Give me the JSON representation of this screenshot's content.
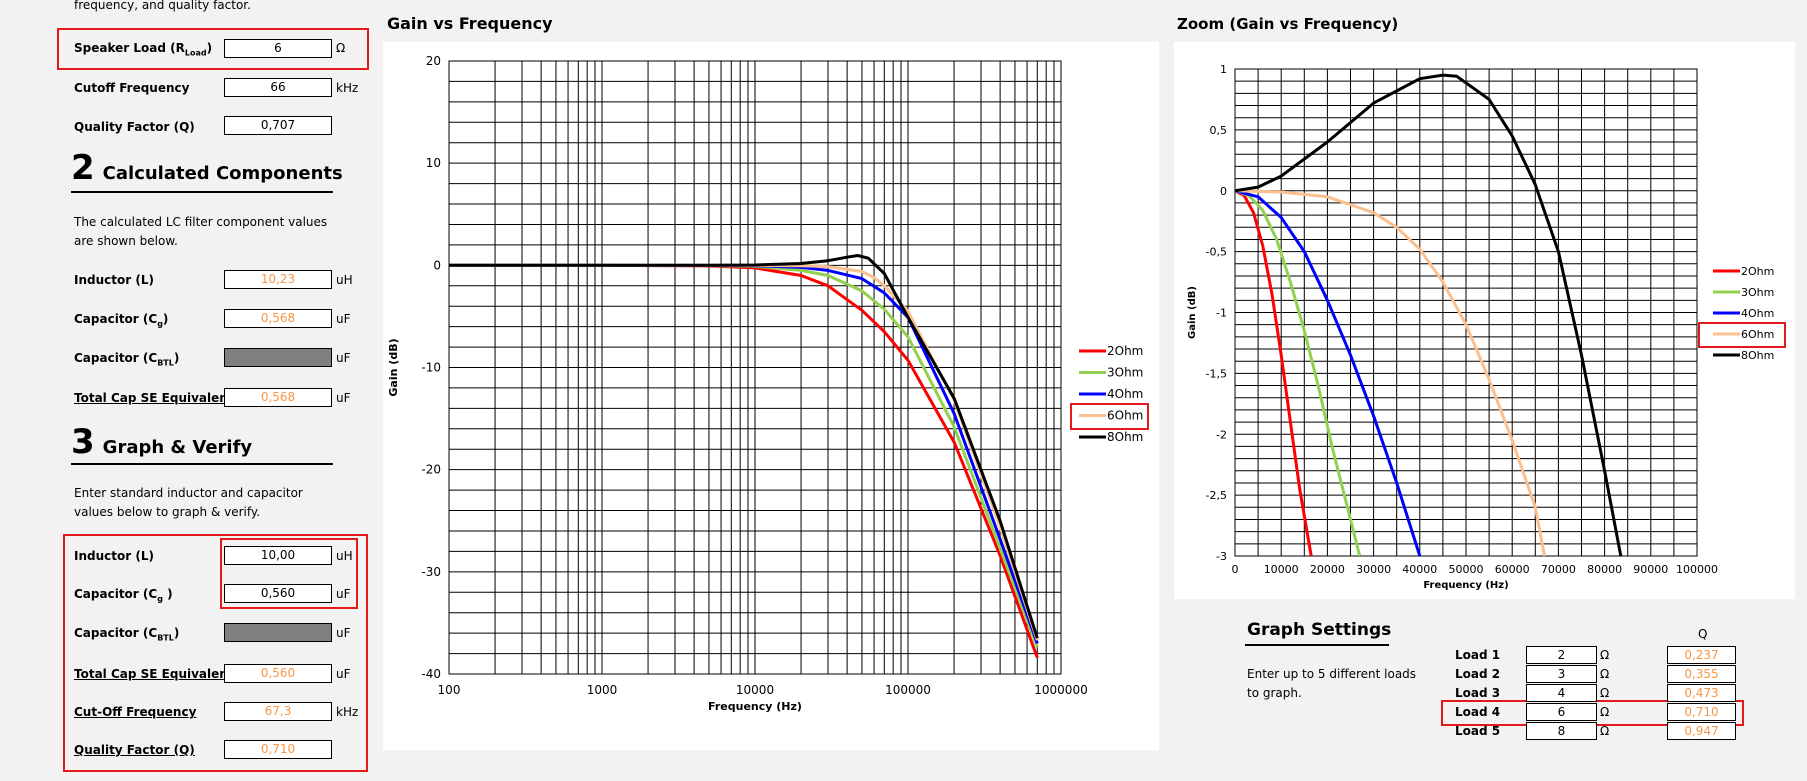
{
  "intro_text": "frequency, and quality factor.",
  "inputs": {
    "speaker_load": {
      "label": "Speaker Load (R",
      "sub": "Load",
      "value": "6",
      "unit": "Ω"
    },
    "cutoff": {
      "label": "Cutoff Frequency",
      "value": "66",
      "unit": "kHz"
    },
    "q": {
      "label": "Quality Factor (Q)",
      "value": "0,707"
    }
  },
  "section2": {
    "number": "2",
    "title": "Calculated Components",
    "desc": "The calculated LC filter component values are shown below.",
    "inductor": {
      "label": "Inductor (L)",
      "value": "10,23",
      "unit": "uH"
    },
    "cap_g": {
      "label": "Capacitor (C",
      "sub": "g",
      "value": "0,568",
      "unit": "uF"
    },
    "cap_btl": {
      "label": "Capacitor (C",
      "sub": "BTL",
      "unit": "uF"
    },
    "total_cap": {
      "label": "Total Cap SE Equivalent",
      "value": "0,568",
      "unit": "uF"
    }
  },
  "section3": {
    "number": "3",
    "title": "Graph & Verify",
    "desc": "Enter standard inductor and capacitor values below to graph & verify.",
    "inductor": {
      "label": "Inductor (L)",
      "value": "10,00",
      "unit": "uH"
    },
    "cap_g": {
      "label": "Capacitor (C",
      "sub": "g",
      "value": "0,560",
      "unit": "uF"
    },
    "cap_btl": {
      "label": "Capacitor (C",
      "sub": "BTL",
      "unit": "uF"
    },
    "total_cap": {
      "label": "Total Cap SE Equivalent",
      "value": "0,560",
      "unit": "uF"
    },
    "cutoff": {
      "label": "Cut-Off Frequency",
      "value": "67,3",
      "unit": "kHz"
    },
    "q": {
      "label": "Quality Factor (Q)",
      "value": "0,710"
    }
  },
  "graph_settings": {
    "title": "Graph Settings",
    "desc": "Enter up to 5 different loads to graph.",
    "q_header": "Q",
    "loads": [
      {
        "label": "Load 1",
        "value": "2",
        "unit": "Ω",
        "q": "0,237"
      },
      {
        "label": "Load 2",
        "value": "3",
        "unit": "Ω",
        "q": "0,355"
      },
      {
        "label": "Load 3",
        "value": "4",
        "unit": "Ω",
        "q": "0,473"
      },
      {
        "label": "Load 4",
        "value": "6",
        "unit": "Ω",
        "q": "0,710"
      },
      {
        "label": "Load 5",
        "value": "8",
        "unit": "Ω",
        "q": "0,947"
      }
    ]
  },
  "colors": {
    "calc_value": "#f79646",
    "highlight": "#e31a1c",
    "disabled_cell": "#808080"
  },
  "chart_data": [
    {
      "type": "line",
      "title": "Gain vs Frequency",
      "xlabel": "Frequency (Hz)",
      "ylabel": "Gain (dB)",
      "x_scale": "log",
      "xlim": [
        100,
        1000000
      ],
      "ylim": [
        -40,
        20
      ],
      "x_ticks": [
        "100",
        "1000",
        "10000",
        "100000",
        "1000000"
      ],
      "y_ticks": [
        "20",
        "10",
        "0",
        "-10",
        "-20",
        "-30",
        "-40"
      ],
      "grid": true,
      "legend_position": "right",
      "series": [
        {
          "name": "2Ohm",
          "color": "#ff0000",
          "x": [
            100,
            1000,
            5000,
            10000,
            20000,
            30000,
            50000,
            70000,
            100000,
            200000,
            400000,
            700000
          ],
          "y": [
            0,
            0,
            -0.06,
            -0.25,
            -1.0,
            -2.0,
            -4.4,
            -6.5,
            -9.3,
            -17.3,
            -28.4,
            -38.4
          ]
        },
        {
          "name": "3Ohm",
          "color": "#92d050",
          "x": [
            100,
            1000,
            5000,
            10000,
            20000,
            30000,
            50000,
            70000,
            100000,
            200000,
            400000,
            700000
          ],
          "y": [
            0,
            0,
            -0.02,
            -0.1,
            -0.5,
            -1.0,
            -2.5,
            -4.3,
            -7.0,
            -15.8,
            -27.7,
            -37.4
          ]
        },
        {
          "name": "4Ohm",
          "color": "#0000ff",
          "x": [
            100,
            1000,
            5000,
            10000,
            20000,
            30000,
            50000,
            70000,
            100000,
            200000,
            400000,
            700000
          ],
          "y": [
            0,
            0,
            -0.01,
            -0.04,
            -0.2,
            -0.5,
            -1.3,
            -2.7,
            -5.1,
            -14.5,
            -26.8,
            -37.0
          ]
        },
        {
          "name": "6Ohm",
          "color": "#fac090",
          "x": [
            100,
            1000,
            5000,
            10000,
            20000,
            30000,
            50000,
            60000,
            70000,
            100000,
            200000,
            400000,
            700000
          ],
          "y": [
            0,
            0,
            0,
            -0.01,
            -0.04,
            -0.12,
            -0.6,
            -1.2,
            -2.0,
            -4.5,
            -13.2,
            -25.6,
            -36.7
          ]
        },
        {
          "name": "8Ohm",
          "color": "#000000",
          "x": [
            100,
            1000,
            5000,
            10000,
            20000,
            30000,
            40000,
            47000,
            55000,
            70000,
            84000,
            100000,
            200000,
            400000,
            700000
          ],
          "y": [
            0,
            0,
            0.01,
            0.03,
            0.18,
            0.45,
            0.8,
            0.96,
            0.7,
            -0.8,
            -3.0,
            -5.1,
            -13.0,
            -25.0,
            -36.5
          ]
        }
      ]
    },
    {
      "type": "line",
      "title": "Zoom (Gain vs Frequency)",
      "xlabel": "Frequency (Hz)",
      "ylabel": "Gain (dB)",
      "xlim": [
        0,
        100000
      ],
      "ylim": [
        -3,
        1
      ],
      "x_ticks": [
        "0",
        "10000",
        "20000",
        "30000",
        "40000",
        "50000",
        "60000",
        "70000",
        "80000",
        "90000",
        "100000"
      ],
      "y_ticks": [
        "1",
        "0,5",
        "0",
        "-0,5",
        "-1",
        "-1,5",
        "-2",
        "-2,5",
        "-3"
      ],
      "grid": true,
      "legend_position": "right",
      "series": [
        {
          "name": "2Ohm",
          "color": "#ff0000",
          "x": [
            0,
            2000,
            4000,
            6000,
            8000,
            10000,
            12000,
            14000,
            16500
          ],
          "y": [
            0,
            -0.04,
            -0.18,
            -0.45,
            -0.85,
            -1.35,
            -1.9,
            -2.45,
            -3.0
          ]
        },
        {
          "name": "3Ohm",
          "color": "#92d050",
          "x": [
            0,
            3000,
            6000,
            9000,
            12000,
            15000,
            18000,
            21000,
            24000,
            27000
          ],
          "y": [
            0,
            -0.04,
            -0.16,
            -0.4,
            -0.75,
            -1.15,
            -1.6,
            -2.1,
            -2.55,
            -3.0
          ]
        },
        {
          "name": "4Ohm",
          "color": "#0000ff",
          "x": [
            0,
            5000,
            10000,
            15000,
            20000,
            25000,
            30000,
            35000,
            40000
          ],
          "y": [
            0,
            -0.05,
            -0.22,
            -0.5,
            -0.9,
            -1.35,
            -1.85,
            -2.4,
            -3.0
          ]
        },
        {
          "name": "6Ohm",
          "color": "#fac090",
          "x": [
            0,
            10000,
            20000,
            30000,
            35000,
            40000,
            45000,
            50000,
            55000,
            60000,
            65000,
            67000
          ],
          "y": [
            0,
            -0.01,
            -0.05,
            -0.18,
            -0.3,
            -0.48,
            -0.75,
            -1.1,
            -1.55,
            -2.05,
            -2.6,
            -3.0
          ]
        },
        {
          "name": "8Ohm",
          "color": "#000000",
          "x": [
            0,
            5000,
            10000,
            20000,
            30000,
            40000,
            45000,
            48000,
            55000,
            60000,
            65000,
            70000,
            75000,
            80000,
            83500
          ],
          "y": [
            0,
            0.03,
            0.12,
            0.4,
            0.72,
            0.92,
            0.95,
            0.94,
            0.75,
            0.45,
            0.05,
            -0.5,
            -1.35,
            -2.3,
            -3.0
          ]
        }
      ]
    }
  ]
}
